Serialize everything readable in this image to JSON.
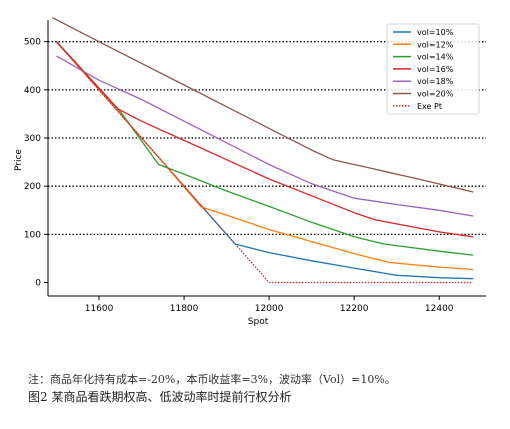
{
  "chart_data": {
    "type": "line",
    "xlabel": "Spot",
    "ylabel": "Price",
    "xlim": [
      11480,
      12510
    ],
    "ylim": [
      -28,
      545
    ],
    "x_ticks": [
      "11600",
      "11800",
      "12000",
      "12200",
      "12400"
    ],
    "y_ticks": [
      "0",
      "100",
      "200",
      "300",
      "400",
      "500"
    ],
    "grid": "horizontal dotted at 100,200,300,400,500",
    "legend_position": "top-right",
    "series": [
      {
        "name": "vol=10%",
        "color": "#1f77b4",
        "dash": "solid",
        "x": [
          11500,
          11650,
          11750,
          11850,
          11920,
          12000,
          12100,
          12200,
          12300,
          12400,
          12480
        ],
        "y": [
          500,
          350,
          250,
          150,
          80,
          62,
          45,
          30,
          15,
          10,
          8
        ]
      },
      {
        "name": "vol=12%",
        "color": "#ff7f0e",
        "dash": "solid",
        "x": [
          11500,
          11650,
          11750,
          11840,
          11900,
          12000,
          12100,
          12200,
          12280,
          12400,
          12480
        ],
        "y": [
          500,
          350,
          250,
          157,
          140,
          110,
          85,
          60,
          42,
          32,
          27
        ]
      },
      {
        "name": "vol=14%",
        "color": "#2ca02c",
        "dash": "solid",
        "x": [
          11500,
          11650,
          11740,
          11800,
          11900,
          12000,
          12100,
          12200,
          12270,
          12400,
          12480
        ],
        "y": [
          500,
          355,
          245,
          225,
          190,
          158,
          125,
          95,
          80,
          65,
          57
        ]
      },
      {
        "name": "vol=16%",
        "color": "#d62728",
        "dash": "solid",
        "x": [
          11500,
          11645,
          11700,
          11800,
          11900,
          12000,
          12100,
          12200,
          12250,
          12400,
          12480
        ],
        "y": [
          500,
          360,
          335,
          295,
          255,
          215,
          180,
          145,
          130,
          105,
          95
        ]
      },
      {
        "name": "vol=18%",
        "color": "#9467bd",
        "dash": "solid",
        "x": [
          11500,
          11600,
          11700,
          11800,
          11900,
          12000,
          12100,
          12200,
          12300,
          12400,
          12480
        ],
        "y": [
          470,
          420,
          380,
          335,
          290,
          245,
          205,
          175,
          162,
          150,
          138
        ]
      },
      {
        "name": "vol=20%",
        "color": "#8c564b",
        "dash": "solid",
        "x": [
          11490,
          11600,
          11700,
          11800,
          11900,
          12000,
          12100,
          12150,
          12250,
          12350,
          12480
        ],
        "y": [
          550,
          500,
          455,
          410,
          365,
          320,
          275,
          255,
          235,
          215,
          188
        ]
      },
      {
        "name": "Exe Pt",
        "color": "#d62728",
        "dash": "dotted",
        "x": [
          11500,
          11920,
          12000,
          12480
        ],
        "y": [
          500,
          80,
          0,
          0
        ]
      }
    ]
  },
  "footer": {
    "note": "注：商品年化持有成本=-20%，本币收益率=3%，波动率（Vol）=10%。",
    "caption": "图2  某商品看跌期权高、低波动率时提前行权分析"
  }
}
